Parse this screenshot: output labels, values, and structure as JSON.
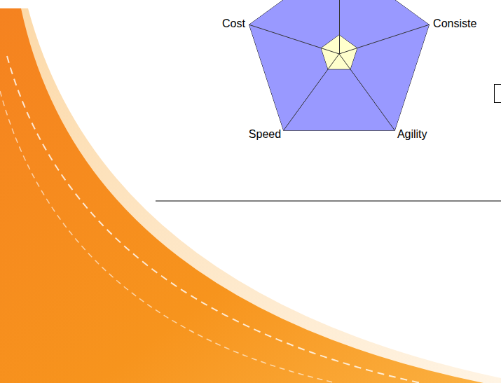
{
  "chart_data": {
    "type": "radar",
    "categories": [
      null,
      "Cost",
      "Speed",
      "Agility",
      "Consiste"
    ],
    "ylim": [
      0,
      10
    ],
    "tick_labels": false,
    "series": [
      {
        "color": "#9999ff",
        "values": [
          10,
          10,
          10,
          10,
          10
        ]
      },
      {
        "color": "#ffffcc",
        "values": [
          2,
          2,
          2,
          2,
          2
        ]
      }
    ]
  }
}
